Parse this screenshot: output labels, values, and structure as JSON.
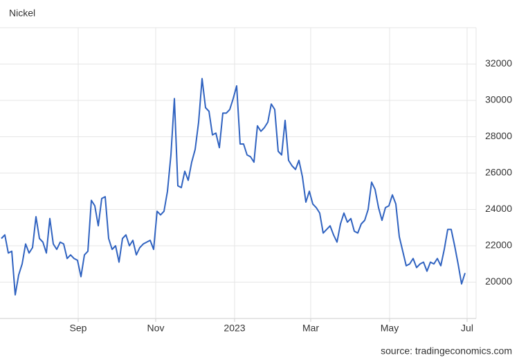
{
  "chart_data": {
    "type": "line",
    "title": "Nickel",
    "source": "source: tradingeconomics.com",
    "color": "#2f62c0",
    "values": [
      22400,
      22600,
      21600,
      21700,
      19300,
      20400,
      21000,
      22100,
      21600,
      21900,
      23600,
      22400,
      22200,
      21600,
      23500,
      22100,
      21800,
      22200,
      22100,
      21300,
      21500,
      21300,
      21200,
      20300,
      21500,
      21700,
      24500,
      24200,
      23100,
      24600,
      24700,
      22400,
      21800,
      22000,
      21100,
      22400,
      22600,
      22000,
      22300,
      21500,
      21900,
      22100,
      22200,
      22300,
      21800,
      23900,
      23700,
      23900,
      25000,
      27000,
      30100,
      25300,
      25200,
      26100,
      25600,
      26600,
      27300,
      28800,
      31200,
      29600,
      29400,
      28100,
      28200,
      27400,
      29300,
      29300,
      29500,
      30100,
      30800,
      27600,
      27600,
      27000,
      26900,
      26600,
      28600,
      28300,
      28500,
      28800,
      29800,
      29500,
      27200,
      27000,
      28900,
      26700,
      26400,
      26200,
      26700,
      25800,
      24400,
      25000,
      24300,
      24100,
      23800,
      22700,
      22900,
      23100,
      22600,
      22200,
      23200,
      23800,
      23300,
      23500,
      22800,
      22700,
      23200,
      23400,
      24000,
      25500,
      25100,
      24100,
      23400,
      24100,
      24200,
      24800,
      24300,
      22500,
      21700,
      20900,
      21000,
      21300,
      20800,
      21000,
      21100,
      20600,
      21100,
      21000,
      21300,
      20900,
      21800,
      22900,
      22900,
      22000,
      21000,
      19900,
      20500
    ],
    "xlim": [
      -0.4,
      137.2
    ],
    "xticks": [
      {
        "value": 22.2,
        "label": "Sep"
      },
      {
        "value": 44.6,
        "label": "Nov"
      },
      {
        "value": 67.4,
        "label": "2023"
      },
      {
        "value": 89.4,
        "label": "Mar"
      },
      {
        "value": 112.2,
        "label": "May"
      },
      {
        "value": 134.6,
        "label": "Jul"
      }
    ],
    "ylim": [
      18000,
      34000
    ],
    "yticks": [
      20000,
      22000,
      24000,
      26000,
      28000,
      30000,
      32000
    ],
    "grid": true
  }
}
